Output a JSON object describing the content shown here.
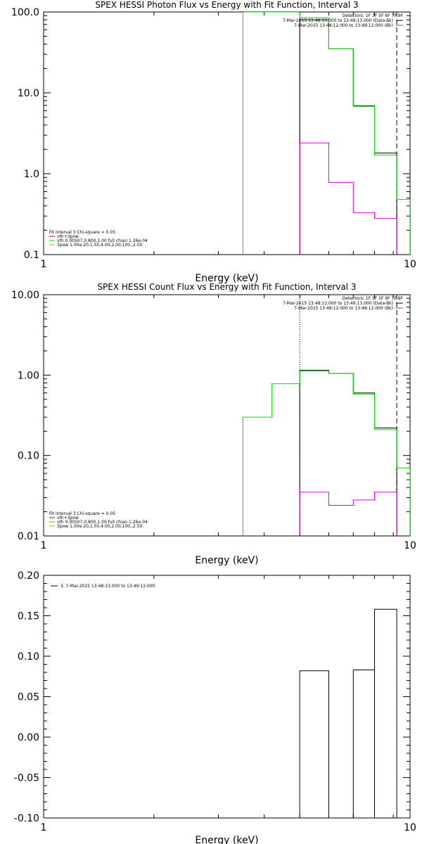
{
  "colors": {
    "total": "#000000",
    "thermal": "#00e000",
    "pow": "#e000e0",
    "legend_red": "#e00000",
    "legend_orange": "#e0a000"
  },
  "chart_data": [
    {
      "type": "line",
      "title": "SPEX HESSI Photon Flux vs Energy with Fit Function, Interval 3",
      "xlabel": "Energy (keV)",
      "ylabel": "",
      "xscale": "log",
      "yscale": "log",
      "xlim": [
        1,
        10
      ],
      "ylim": [
        0.1,
        100
      ],
      "xticks": [
        {
          "v": 1,
          "l": "1"
        },
        {
          "v": 10,
          "l": "10"
        }
      ],
      "yticks": [
        {
          "v": 0.1,
          "l": "0.1"
        },
        {
          "v": 1,
          "l": "1.0"
        },
        {
          "v": 10,
          "l": "10.0"
        },
        {
          "v": 100,
          "l": "100.0"
        }
      ],
      "grid": false,
      "vlines": [
        {
          "x": 5.0,
          "style": "solid",
          "color": "pow"
        },
        {
          "x": 9.2,
          "style": "dashed",
          "color": "total"
        }
      ],
      "legend_top": {
        "header": "Detectors: 1F 3F 5F 6F 7F 9F",
        "entries": [
          {
            "label": "7-Mar-2015 13:48:13.000 to 13:49:13.000 (Data-Bk)",
            "color": "total"
          },
          {
            "label": "7-Mar-2015 13:48:12.000 to 13:48:12.000 (Bk)",
            "color": "pow"
          }
        ]
      },
      "legend_bottom": {
        "header": "Fit Interval 3   Chi-square = 0.05",
        "entries": [
          {
            "label": "vth+3pow",
            "color": "legend_red"
          },
          {
            "label": "vth 0.00507,0.800,1.00   full chian 1.26e-04",
            "color": "thermal"
          },
          {
            "label": "3pow 1.00e-20,1.50,4.00,2.00,100.,2.50",
            "color": "legend_orange"
          }
        ]
      },
      "series": [
        {
          "color": "total",
          "edges": [
            5,
            6,
            7,
            8,
            9.2
          ],
          "values": [
            80,
            35,
            6.9,
            1.8
          ]
        },
        {
          "color": "thermal",
          "edges": [
            3.5,
            5,
            6,
            7,
            8,
            9.2,
            10
          ],
          "values": [
            100,
            85,
            35,
            6.8,
            1.7,
            0.48
          ]
        },
        {
          "color": "pow",
          "edges": [
            5,
            6,
            7,
            8,
            9.2
          ],
          "values": [
            2.4,
            0.78,
            0.33,
            0.28
          ]
        }
      ]
    },
    {
      "type": "line",
      "title": "SPEX HESSI Count Flux vs Energy with Fit Function, Interval 3",
      "xlabel": "Energy (keV)",
      "ylabel": "",
      "xscale": "log",
      "yscale": "log",
      "xlim": [
        1,
        10
      ],
      "ylim": [
        0.01,
        10
      ],
      "xticks": [
        {
          "v": 1,
          "l": "1"
        },
        {
          "v": 10,
          "l": "10"
        }
      ],
      "yticks": [
        {
          "v": 0.01,
          "l": "0.01"
        },
        {
          "v": 0.1,
          "l": "0.10"
        },
        {
          "v": 1,
          "l": "1.00"
        },
        {
          "v": 10,
          "l": "10.00"
        }
      ],
      "grid": false,
      "vlines": [
        {
          "x": 5.0,
          "style": "dotted",
          "color": "total"
        },
        {
          "x": 9.2,
          "style": "dashed",
          "color": "total"
        }
      ],
      "legend_top": {
        "header": "Detectors: 1F 3F 5F 6F 7F 9F",
        "entries": [
          {
            "label": "7-Mar-2015 13:48:13.000 to 13:49:13.000 (Data-Bk)",
            "color": "total"
          },
          {
            "label": "7-Mar-2015 13:48:12.000 to 13:48:12.000 (Bk)",
            "color": "pow"
          }
        ]
      },
      "legend_bottom": {
        "header": "Fit Interval 3   Chi-square = 0.05",
        "entries": [
          {
            "label": "vth+3pow",
            "color": "legend_red"
          },
          {
            "label": "vth 0.00507,0.800,1.00   full chian 1.26e-04",
            "color": "thermal"
          },
          {
            "label": "3pow 1.00e-20,1.50,4.00,2.00,100.,2.50",
            "color": "legend_orange"
          }
        ]
      },
      "series": [
        {
          "color": "total",
          "edges": [
            5,
            6,
            7,
            8,
            9.2
          ],
          "values": [
            1.15,
            1.05,
            0.6,
            0.22
          ]
        },
        {
          "color": "thermal",
          "edges": [
            3.5,
            4.2,
            5,
            6,
            7,
            8,
            9.2,
            10
          ],
          "values": [
            0.3,
            0.78,
            1.12,
            1.05,
            0.58,
            0.21,
            0.07
          ]
        },
        {
          "color": "pow",
          "edges": [
            5,
            6,
            7,
            8,
            9.2
          ],
          "values": [
            0.035,
            0.024,
            0.028,
            0.035
          ]
        }
      ]
    },
    {
      "type": "line",
      "title": "",
      "xlabel": "Energy (keV)",
      "ylabel": "",
      "xscale": "log",
      "yscale": "linear",
      "xlim": [
        1,
        10
      ],
      "ylim": [
        -0.1,
        0.2
      ],
      "xticks": [
        {
          "v": 1,
          "l": "1"
        },
        {
          "v": 10,
          "l": "10"
        }
      ],
      "yticks": [
        {
          "v": -0.1,
          "l": "-0.10"
        },
        {
          "v": -0.05,
          "l": "-0.05"
        },
        {
          "v": 0,
          "l": "0.00"
        },
        {
          "v": 0.05,
          "l": "0.05"
        },
        {
          "v": 0.1,
          "l": "0.10"
        },
        {
          "v": 0.15,
          "l": "0.15"
        },
        {
          "v": 0.2,
          "l": "0.20"
        }
      ],
      "grid": false,
      "vlines": [],
      "legend_top": {
        "header": "",
        "entries": [
          {
            "label": "3.  7-Mar-2015 13:48:13.000 to 13:49:13.000",
            "color": "total"
          }
        ]
      },
      "legend_bottom": null,
      "series": [
        {
          "color": "total",
          "edges": [
            5,
            6,
            7,
            8,
            9.2
          ],
          "values": [
            0.082,
            -0.1,
            0.083,
            0.158
          ],
          "baseline": -0.1
        }
      ]
    }
  ],
  "panels": [
    {
      "plot": {
        "l": 62,
        "r": 583,
        "t": 17,
        "b": 362
      },
      "title_y": 11,
      "xlabel_y": 400
    },
    {
      "plot": {
        "l": 62,
        "r": 583,
        "t": 419,
        "b": 762
      },
      "title_y": 412,
      "xlabel_y": 801
    },
    {
      "plot": {
        "l": 62,
        "r": 583,
        "t": 818,
        "b": 1163
      },
      "title_y": 0,
      "xlabel_y": 1199
    }
  ]
}
